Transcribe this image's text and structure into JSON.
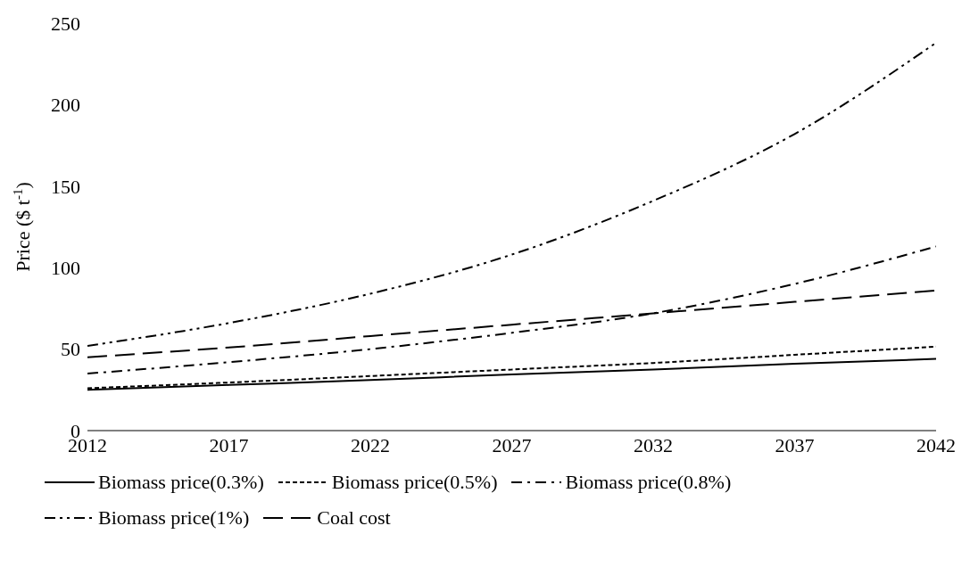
{
  "chart_data": {
    "type": "line",
    "ylabel": "Price ($ t$^{-1}$)",
    "x": [
      2012,
      2017,
      2022,
      2027,
      2032,
      2037,
      2042
    ],
    "xlim": [
      2012,
      2042
    ],
    "xticks": [
      2012,
      2017,
      2022,
      2027,
      2032,
      2037,
      2042
    ],
    "ylim": [
      0,
      250
    ],
    "yticks": [
      0,
      50,
      100,
      150,
      200,
      250
    ],
    "grid": false,
    "legend": "bottom",
    "marker": "none",
    "series": [
      {
        "name": "Biomass price(0.3%)",
        "color": "#000000",
        "line_style": "solid",
        "values": [
          25,
          28,
          31,
          34.5,
          37.5,
          41,
          44
        ]
      },
      {
        "name": "Biomass price(0.5%)",
        "color": "#000000",
        "line_style": "dotted",
        "values": [
          26,
          29.5,
          33.5,
          37.5,
          41.5,
          46.5,
          51.5
        ]
      },
      {
        "name": "Biomass price(0.8%)",
        "color": "#000000",
        "line_style": "dashdot",
        "values": [
          35,
          42,
          50,
          60,
          72,
          90,
          113
        ]
      },
      {
        "name": "Biomass price(1%)",
        "color": "#000000",
        "line_style": "dashdotdot",
        "values": [
          52,
          66,
          84,
          108,
          141,
          182,
          238
        ]
      },
      {
        "name": "Coal cost",
        "color": "#000000",
        "line_style": "dashed",
        "values": [
          45,
          51,
          58,
          65,
          72,
          79,
          86
        ]
      }
    ]
  }
}
